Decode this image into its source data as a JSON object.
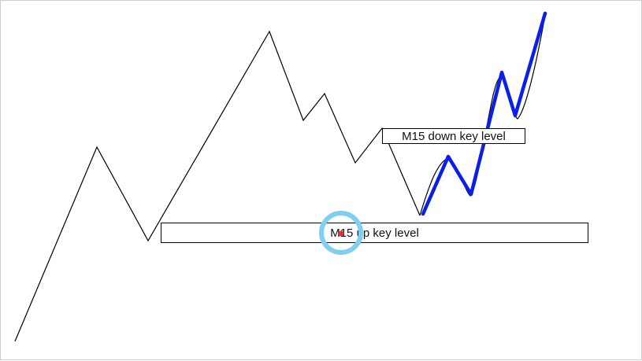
{
  "labels": {
    "down_key_level": "M15 down key level",
    "up_key_level": "M15 up key level"
  },
  "colors": {
    "price_line": "#000000",
    "projection_line": "#0a1fe8",
    "highlight_circle": "#7fcff0",
    "highlight_dot": "#e0303a"
  },
  "icons": {
    "highlight": "circle-marker-icon"
  }
}
